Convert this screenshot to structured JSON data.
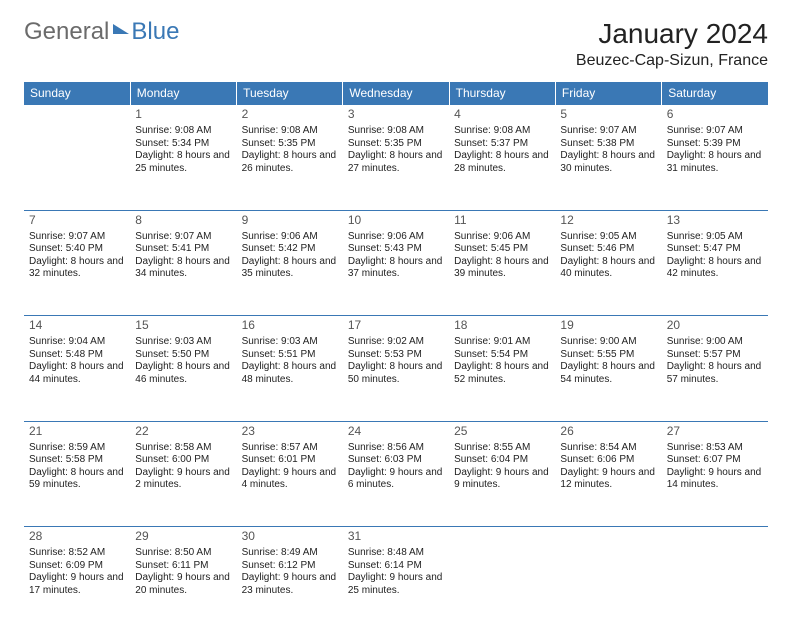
{
  "logo": {
    "part1": "General",
    "part2": "Blue"
  },
  "title": "January 2024",
  "location": "Beuzec-Cap-Sizun, France",
  "colors": {
    "accent": "#3a78b5",
    "header_text": "#ffffff",
    "bg": "#ffffff",
    "text": "#222222",
    "daynum": "#555555"
  },
  "day_headers": [
    "Sunday",
    "Monday",
    "Tuesday",
    "Wednesday",
    "Thursday",
    "Friday",
    "Saturday"
  ],
  "month_start_weekday": 1,
  "days_in_month": 31,
  "days": {
    "1": {
      "sunrise": "9:08 AM",
      "sunset": "5:34 PM",
      "daylight": "8 hours and 25 minutes."
    },
    "2": {
      "sunrise": "9:08 AM",
      "sunset": "5:35 PM",
      "daylight": "8 hours and 26 minutes."
    },
    "3": {
      "sunrise": "9:08 AM",
      "sunset": "5:35 PM",
      "daylight": "8 hours and 27 minutes."
    },
    "4": {
      "sunrise": "9:08 AM",
      "sunset": "5:37 PM",
      "daylight": "8 hours and 28 minutes."
    },
    "5": {
      "sunrise": "9:07 AM",
      "sunset": "5:38 PM",
      "daylight": "8 hours and 30 minutes."
    },
    "6": {
      "sunrise": "9:07 AM",
      "sunset": "5:39 PM",
      "daylight": "8 hours and 31 minutes."
    },
    "7": {
      "sunrise": "9:07 AM",
      "sunset": "5:40 PM",
      "daylight": "8 hours and 32 minutes."
    },
    "8": {
      "sunrise": "9:07 AM",
      "sunset": "5:41 PM",
      "daylight": "8 hours and 34 minutes."
    },
    "9": {
      "sunrise": "9:06 AM",
      "sunset": "5:42 PM",
      "daylight": "8 hours and 35 minutes."
    },
    "10": {
      "sunrise": "9:06 AM",
      "sunset": "5:43 PM",
      "daylight": "8 hours and 37 minutes."
    },
    "11": {
      "sunrise": "9:06 AM",
      "sunset": "5:45 PM",
      "daylight": "8 hours and 39 minutes."
    },
    "12": {
      "sunrise": "9:05 AM",
      "sunset": "5:46 PM",
      "daylight": "8 hours and 40 minutes."
    },
    "13": {
      "sunrise": "9:05 AM",
      "sunset": "5:47 PM",
      "daylight": "8 hours and 42 minutes."
    },
    "14": {
      "sunrise": "9:04 AM",
      "sunset": "5:48 PM",
      "daylight": "8 hours and 44 minutes."
    },
    "15": {
      "sunrise": "9:03 AM",
      "sunset": "5:50 PM",
      "daylight": "8 hours and 46 minutes."
    },
    "16": {
      "sunrise": "9:03 AM",
      "sunset": "5:51 PM",
      "daylight": "8 hours and 48 minutes."
    },
    "17": {
      "sunrise": "9:02 AM",
      "sunset": "5:53 PM",
      "daylight": "8 hours and 50 minutes."
    },
    "18": {
      "sunrise": "9:01 AM",
      "sunset": "5:54 PM",
      "daylight": "8 hours and 52 minutes."
    },
    "19": {
      "sunrise": "9:00 AM",
      "sunset": "5:55 PM",
      "daylight": "8 hours and 54 minutes."
    },
    "20": {
      "sunrise": "9:00 AM",
      "sunset": "5:57 PM",
      "daylight": "8 hours and 57 minutes."
    },
    "21": {
      "sunrise": "8:59 AM",
      "sunset": "5:58 PM",
      "daylight": "8 hours and 59 minutes."
    },
    "22": {
      "sunrise": "8:58 AM",
      "sunset": "6:00 PM",
      "daylight": "9 hours and 2 minutes."
    },
    "23": {
      "sunrise": "8:57 AM",
      "sunset": "6:01 PM",
      "daylight": "9 hours and 4 minutes."
    },
    "24": {
      "sunrise": "8:56 AM",
      "sunset": "6:03 PM",
      "daylight": "9 hours and 6 minutes."
    },
    "25": {
      "sunrise": "8:55 AM",
      "sunset": "6:04 PM",
      "daylight": "9 hours and 9 minutes."
    },
    "26": {
      "sunrise": "8:54 AM",
      "sunset": "6:06 PM",
      "daylight": "9 hours and 12 minutes."
    },
    "27": {
      "sunrise": "8:53 AM",
      "sunset": "6:07 PM",
      "daylight": "9 hours and 14 minutes."
    },
    "28": {
      "sunrise": "8:52 AM",
      "sunset": "6:09 PM",
      "daylight": "9 hours and 17 minutes."
    },
    "29": {
      "sunrise": "8:50 AM",
      "sunset": "6:11 PM",
      "daylight": "9 hours and 20 minutes."
    },
    "30": {
      "sunrise": "8:49 AM",
      "sunset": "6:12 PM",
      "daylight": "9 hours and 23 minutes."
    },
    "31": {
      "sunrise": "8:48 AM",
      "sunset": "6:14 PM",
      "daylight": "9 hours and 25 minutes."
    }
  },
  "labels": {
    "sunrise": "Sunrise:",
    "sunset": "Sunset:",
    "daylight": "Daylight:"
  }
}
